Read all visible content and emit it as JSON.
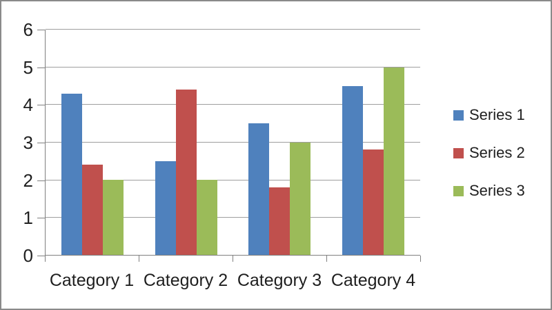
{
  "frame": {
    "background": "#FFFFFF",
    "border_color": "#8A8A8A"
  },
  "chart_data": {
    "type": "bar",
    "title": "",
    "xlabel": "",
    "ylabel": "",
    "categories": [
      "Category 1",
      "Category 2",
      "Category 3",
      "Category 4"
    ],
    "series": [
      {
        "name": "Series 1",
        "color": "#4F81BD",
        "values": [
          4.3,
          2.5,
          3.5,
          4.5
        ]
      },
      {
        "name": "Series 2",
        "color": "#C0504D",
        "values": [
          2.4,
          4.4,
          1.8,
          2.8
        ]
      },
      {
        "name": "Series 3",
        "color": "#9BBB59",
        "values": [
          2.0,
          2.0,
          3.0,
          5.0
        ]
      }
    ],
    "ylim": [
      0,
      6
    ],
    "yticks": [
      "0",
      "1",
      "2",
      "3",
      "4",
      "5",
      "6"
    ],
    "grid": true,
    "gridline_color": "#9E9E9E",
    "axis_color": "#7F7F7F",
    "text_color": "#1F1F1F",
    "legend_position": "right"
  }
}
